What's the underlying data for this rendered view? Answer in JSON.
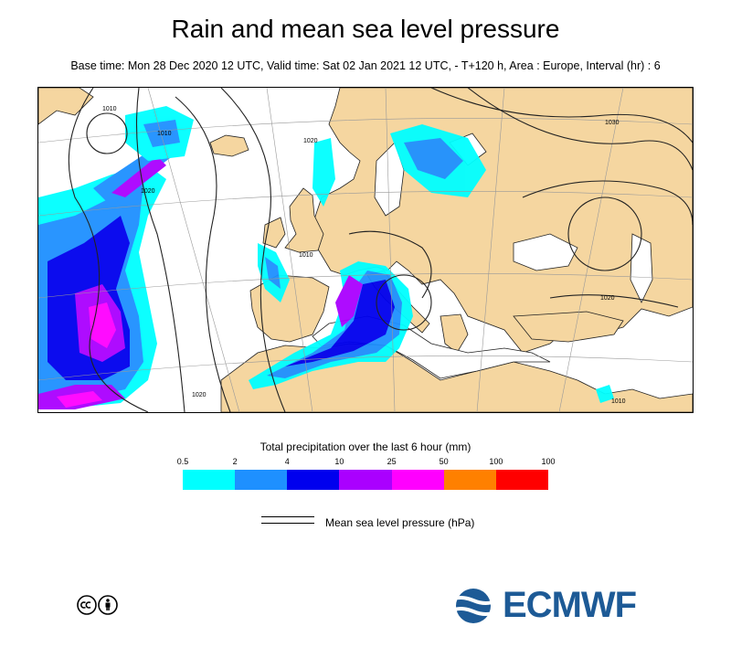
{
  "title": "Rain and mean sea level pressure",
  "subtitle": "Base time: Mon 28 Dec 2020 12 UTC, Valid time: Sat 02 Jan 2021 12 UTC, - T+120 h, Area : Europe, Interval (hr) : 6",
  "map": {
    "contour_labels": [
      "1010",
      "1020",
      "1010",
      "1030",
      "1020",
      "1010",
      "1020",
      "1010",
      "1020"
    ],
    "colors": {
      "sea": "#ffffff",
      "land": "#f5d6a0",
      "coast": "#222222",
      "isobar": "#222222"
    }
  },
  "legend": {
    "title": "Total precipitation over the last 6 hour (mm)",
    "ticks": [
      "0.5",
      "2",
      "4",
      "10",
      "25",
      "50",
      "100",
      "100"
    ],
    "colors": [
      "#00ffff",
      "#1e90ff",
      "#0000ee",
      "#aa00ff",
      "#ff00ff",
      "#ff8000",
      "#ff0000"
    ]
  },
  "pressure_legend": {
    "label": "Mean sea level pressure (hPa)"
  },
  "logo": {
    "text": "ECMWF",
    "color": "#1d5a96"
  }
}
